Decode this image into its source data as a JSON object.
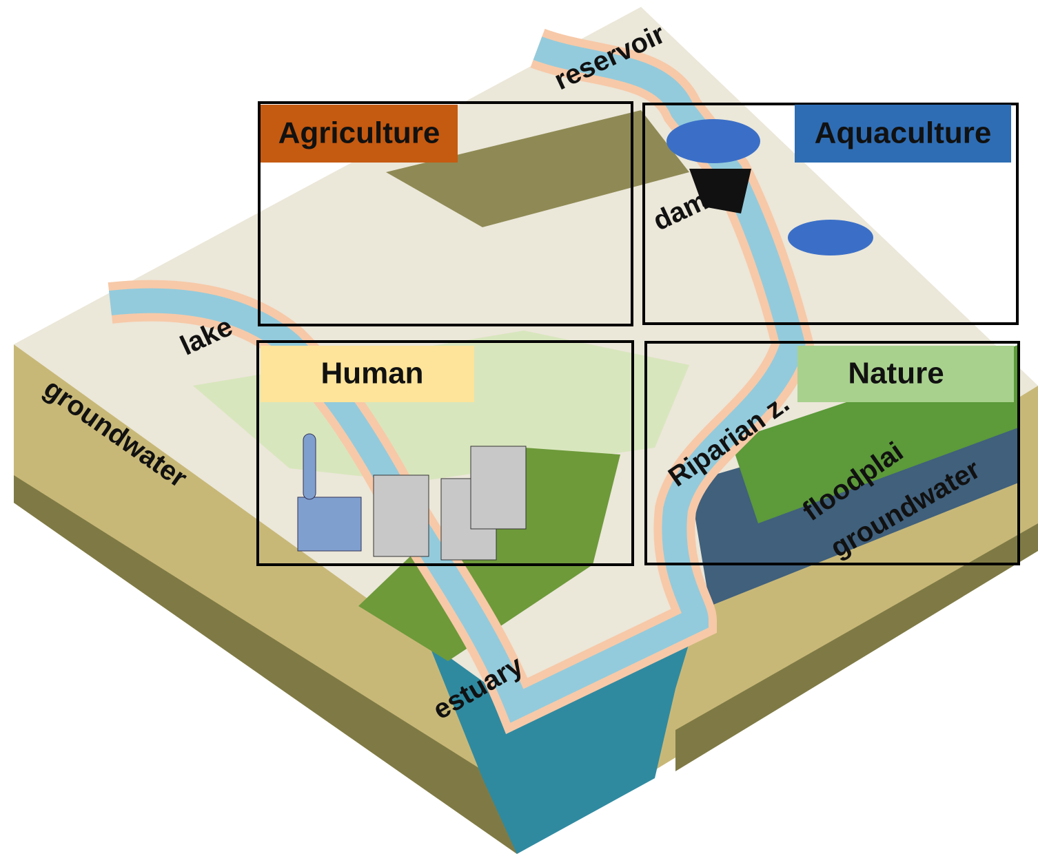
{
  "sections": [
    {
      "label": "Agriculture"
    },
    {
      "label": "Aquaculture"
    },
    {
      "label": "Human"
    },
    {
      "label": "Nature"
    }
  ],
  "features": [
    "reservoir",
    "dam",
    "lake",
    "groundwater",
    "estuary",
    "Riparian z.",
    "floodplai",
    "groundwater"
  ]
}
